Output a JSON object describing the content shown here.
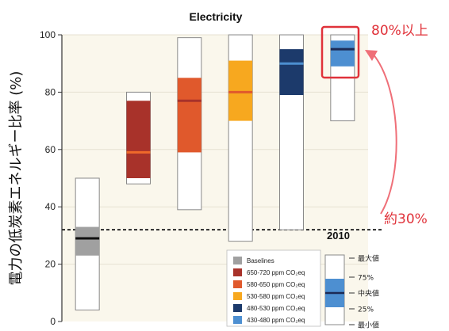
{
  "chart_data": {
    "type": "range-bar",
    "title": "Electricity",
    "ylabel": "電力の低炭素エネルギー比率 (%)",
    "ylim": [
      0,
      100
    ],
    "yticks": [
      "0",
      "20",
      "40",
      "60",
      "80",
      "100"
    ],
    "reference_line": {
      "value": 32,
      "label": "2010",
      "style": "dashed"
    },
    "series": [
      {
        "name": "Baselines",
        "color": "#a0a0a0",
        "min": 4,
        "p25": 23,
        "median": 29,
        "p75": 33,
        "max": 50
      },
      {
        "name": "650-720 ppm CO₂eq",
        "color": "#a8322a",
        "min": 48,
        "p25": 50,
        "median": 59,
        "p75": 77,
        "max": 80
      },
      {
        "name": "580-650 ppm CO₂eq",
        "color": "#e0592c",
        "min": 39,
        "p25": 59,
        "median": 77,
        "p75": 85,
        "max": 99
      },
      {
        "name": "530-580 ppm CO₂eq",
        "color": "#f7a81f",
        "min": 28,
        "p25": 70,
        "median": 80,
        "p75": 91,
        "max": 100
      },
      {
        "name": "480-530 ppm CO₂eq",
        "color": "#1c3a6b",
        "min": 32,
        "p25": 79,
        "median": 90,
        "p75": 95,
        "max": 100
      },
      {
        "name": "430-480 ppm CO₂eq",
        "color": "#4d8fd1",
        "min": 70,
        "p25": 89,
        "median": 95,
        "p75": 98,
        "max": 100
      }
    ],
    "legend_placement": "bottom-center",
    "grid": true
  },
  "key": {
    "labels": [
      "最大値",
      "75%",
      "中央値",
      "25%",
      "最小値"
    ]
  },
  "annotations": {
    "top": "80%以上",
    "bottom": "約30%"
  }
}
